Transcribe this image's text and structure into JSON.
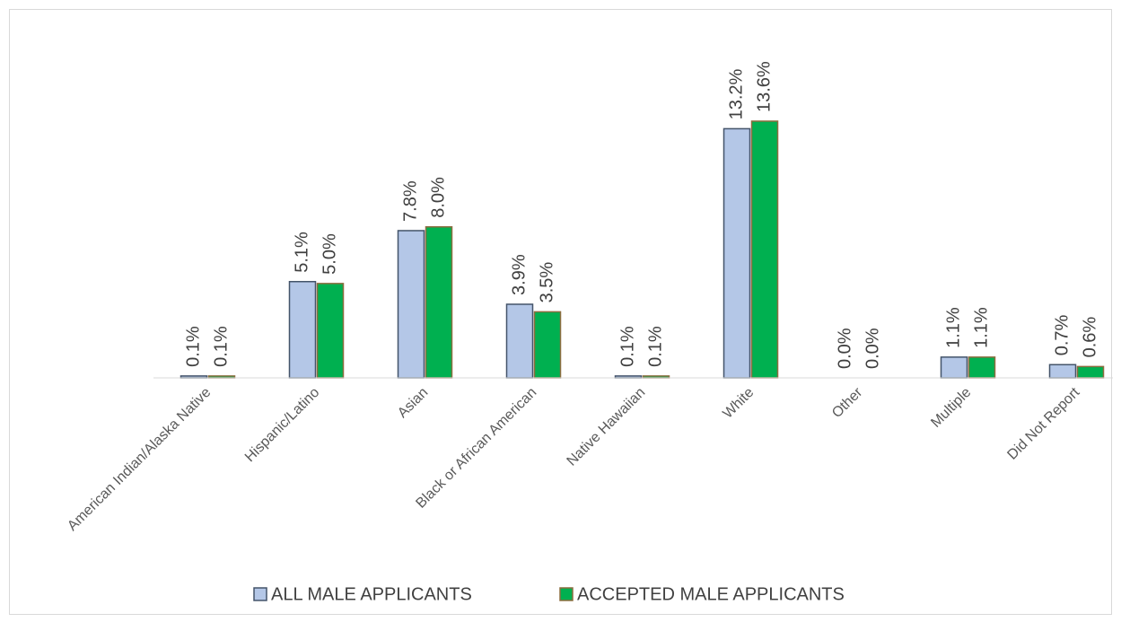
{
  "chart_data": {
    "type": "bar",
    "categories": [
      "American Indian/Alaska Native",
      "Hispanic/Latino",
      "Asian",
      "Black or African American",
      "Native Hawaiian",
      "White",
      "Other",
      "Multiple",
      "Did Not Report"
    ],
    "series": [
      {
        "name": "ALL MALE APPLICANTS",
        "color": "#b4c7e7",
        "values": [
          0.1,
          5.1,
          7.8,
          3.9,
          0.1,
          13.2,
          0.0,
          1.1,
          0.7
        ],
        "value_labels": [
          "0.1%",
          "5.1%",
          "7.8%",
          "3.9%",
          "0.1%",
          "13.2%",
          "0.0%",
          "1.1%",
          "0.7%"
        ]
      },
      {
        "name": "ACCEPTED MALE APPLICANTS",
        "color": "#00b050",
        "values": [
          0.1,
          5.0,
          8.0,
          3.5,
          0.1,
          13.6,
          0.0,
          1.1,
          0.6
        ],
        "value_labels": [
          "0.1%",
          "5.0%",
          "8.0%",
          "3.5%",
          "0.1%",
          "13.6%",
          "0.0%",
          "1.1%",
          "0.6%"
        ]
      }
    ],
    "legend": "bottom"
  }
}
